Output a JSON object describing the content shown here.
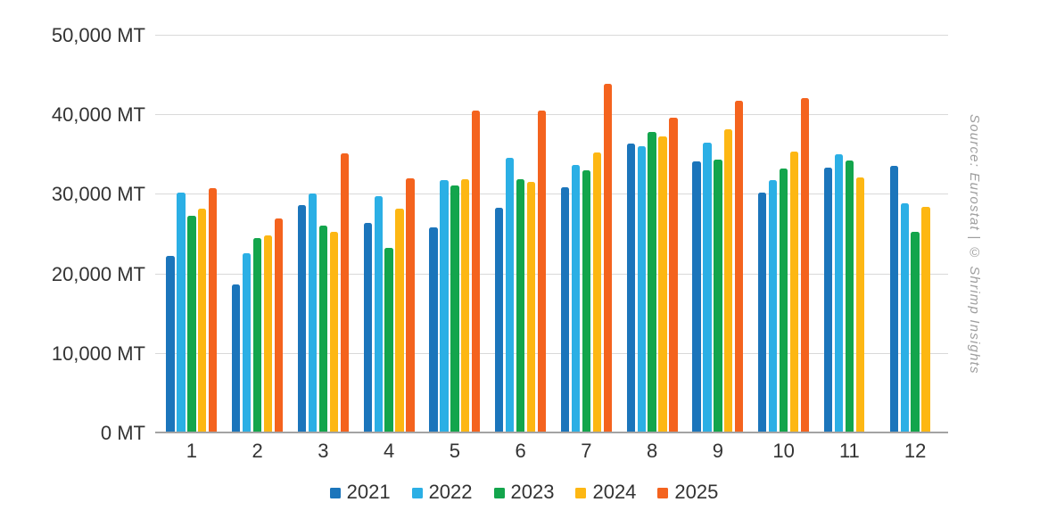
{
  "source_text": "Source: Eurostat | © Shrimp Insights",
  "chart_data": {
    "type": "bar",
    "unit": "MT",
    "grid": true,
    "legend_position": "bottom",
    "ylim": [
      0,
      50000
    ],
    "y_ticks": [
      {
        "value": 0,
        "label": "0 MT"
      },
      {
        "value": 10000,
        "label": "10,000 MT"
      },
      {
        "value": 20000,
        "label": "20,000 MT"
      },
      {
        "value": 30000,
        "label": "30,000 MT"
      },
      {
        "value": 40000,
        "label": "40,000 MT"
      },
      {
        "value": 50000,
        "label": "50,000 MT"
      }
    ],
    "categories": [
      "1",
      "2",
      "3",
      "4",
      "5",
      "6",
      "7",
      "8",
      "9",
      "10",
      "11",
      "12"
    ],
    "series": [
      {
        "name": "2021",
        "color": "#1b75bb",
        "values": [
          22300,
          18700,
          28700,
          26500,
          25900,
          28400,
          30900,
          36400,
          34200,
          30300,
          33400,
          33600
        ]
      },
      {
        "name": "2022",
        "color": "#2bafe5",
        "values": [
          30300,
          22700,
          30200,
          29800,
          31800,
          34600,
          33700,
          36100,
          36600,
          31800,
          35100,
          28900
        ]
      },
      {
        "name": "2023",
        "color": "#13a54c",
        "values": [
          27400,
          24500,
          26100,
          23300,
          31200,
          31900,
          33100,
          37900,
          34400,
          33300,
          34300,
          25300
        ]
      },
      {
        "name": "2024",
        "color": "#fdb713",
        "values": [
          28200,
          24900,
          25300,
          28200,
          31900,
          31600,
          35300,
          37300,
          38200,
          35400,
          32200,
          28500
        ]
      },
      {
        "name": "2025",
        "color": "#f4631e",
        "values": [
          30800,
          27000,
          35200,
          32100,
          40600,
          40600,
          44000,
          39700,
          41800,
          42200,
          null,
          null
        ]
      }
    ]
  }
}
